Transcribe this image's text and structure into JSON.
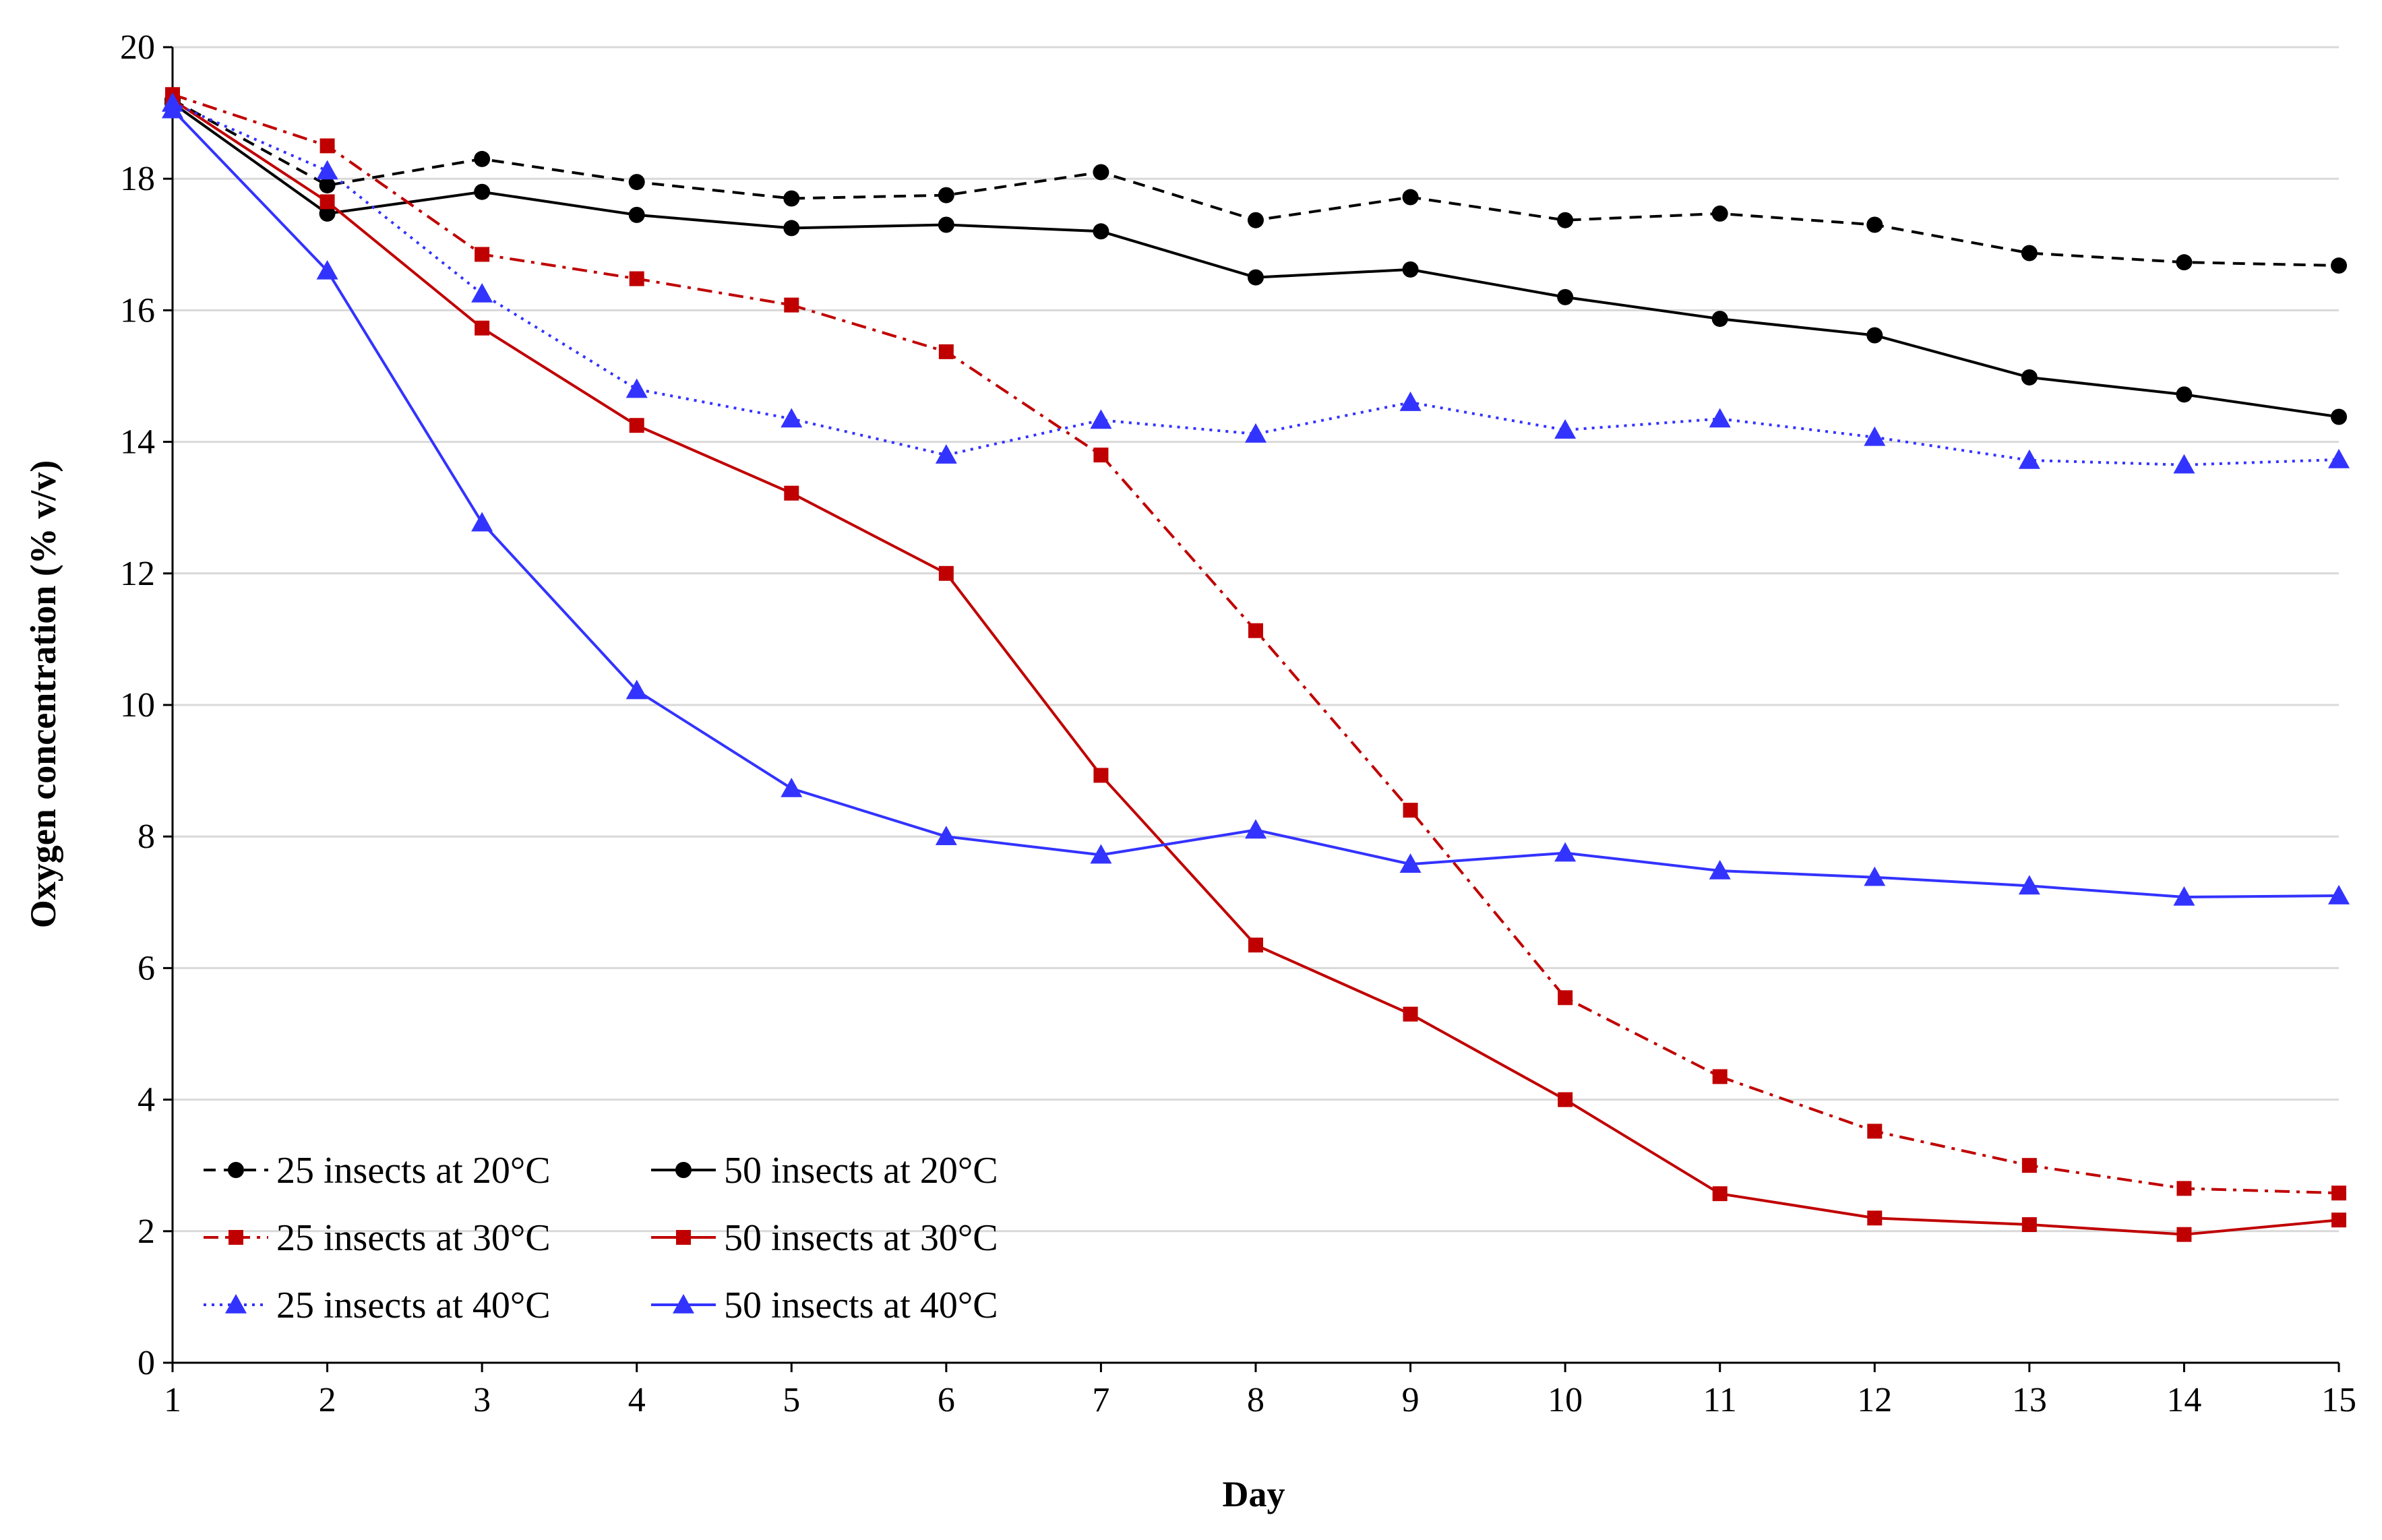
{
  "chart_data": {
    "type": "line",
    "title": "",
    "xlabel": "Day",
    "ylabel": "Oxygen concentration (% v/v)",
    "xlim": [
      1,
      15
    ],
    "ylim": [
      0,
      20
    ],
    "x": [
      1,
      2,
      3,
      4,
      5,
      6,
      7,
      8,
      9,
      10,
      11,
      12,
      13,
      14,
      15
    ],
    "x_ticks": [
      "1",
      "2",
      "3",
      "4",
      "5",
      "6",
      "7",
      "8",
      "9",
      "10",
      "11",
      "12",
      "13",
      "14",
      "15"
    ],
    "y_ticks": [
      "0",
      "2",
      "4",
      "6",
      "8",
      "10",
      "12",
      "14",
      "16",
      "18",
      "20"
    ],
    "grid": "horizontal",
    "legend_position": "bottom-left",
    "series": [
      {
        "name": "25 insects at 20°C",
        "color": "#000000",
        "dash": "dashed",
        "marker": "circle",
        "values": [
          19.2,
          17.9,
          18.3,
          17.95,
          17.7,
          17.75,
          18.1,
          17.37,
          17.72,
          17.37,
          17.47,
          17.3,
          16.87,
          16.73,
          16.68
        ]
      },
      {
        "name": "50 insects at 20°C",
        "color": "#000000",
        "dash": "solid",
        "marker": "circle",
        "values": [
          19.15,
          17.47,
          17.8,
          17.45,
          17.25,
          17.3,
          17.2,
          16.5,
          16.62,
          16.2,
          15.87,
          15.62,
          14.98,
          14.72,
          14.38
        ]
      },
      {
        "name": "25 insects at 30°C",
        "color": "#c00000",
        "dash": "dashdot",
        "marker": "square",
        "values": [
          19.28,
          18.5,
          16.85,
          16.48,
          16.08,
          15.37,
          13.8,
          11.13,
          8.4,
          5.55,
          4.35,
          3.52,
          3.0,
          2.65,
          2.58
        ]
      },
      {
        "name": "50 insects at 30°C",
        "color": "#c00000",
        "dash": "solid",
        "marker": "square",
        "values": [
          19.2,
          17.65,
          15.73,
          14.25,
          13.22,
          12.0,
          8.93,
          6.35,
          5.3,
          4.0,
          2.57,
          2.2,
          2.1,
          1.95,
          2.17
        ]
      },
      {
        "name": "25 insects at 40°C",
        "color": "#3333ff",
        "dash": "dotted",
        "marker": "triangle",
        "values": [
          19.15,
          18.12,
          16.25,
          14.8,
          14.35,
          13.8,
          14.33,
          14.12,
          14.6,
          14.18,
          14.35,
          14.07,
          13.72,
          13.65,
          13.73
        ]
      },
      {
        "name": "50 insects at 40°C",
        "color": "#3333ff",
        "dash": "solid",
        "marker": "triangle",
        "values": [
          19.05,
          16.6,
          12.77,
          10.22,
          8.73,
          8.0,
          7.72,
          8.1,
          7.58,
          7.75,
          7.48,
          7.38,
          7.25,
          7.08,
          7.1
        ]
      }
    ]
  }
}
